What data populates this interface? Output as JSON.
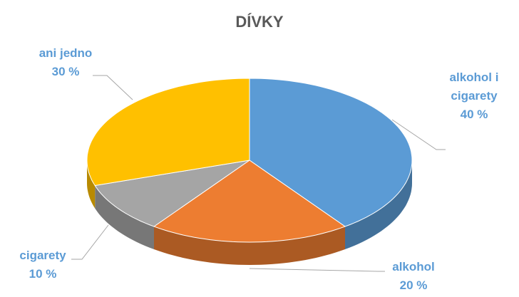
{
  "chart_data": {
    "type": "pie",
    "title": "DÍVKY",
    "categories": [
      "alkohol i cigarety",
      "alkohol",
      "cigarety",
      "ani jedno"
    ],
    "values": [
      40,
      20,
      10,
      30
    ],
    "value_labels": [
      "40 %",
      "20 %",
      "10 %",
      "30 %"
    ],
    "colors": [
      "#5b9bd5",
      "#ed7d31",
      "#a5a5a5",
      "#ffc000"
    ]
  }
}
